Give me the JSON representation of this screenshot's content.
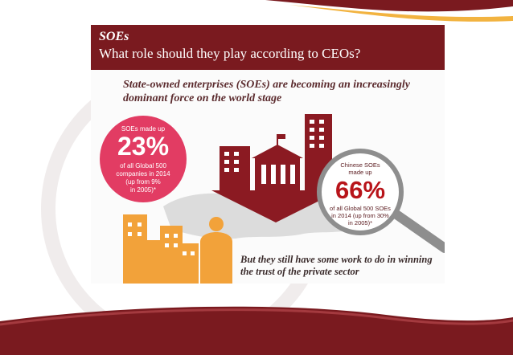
{
  "slide": {
    "title": "SOEs",
    "subtitle": "What role should they play according to CEOs?"
  },
  "infographic": {
    "headline": "State-owned enterprises (SOEs) are becoming an increasingly dominant force on the world stage",
    "left_stat": {
      "intro": "SOEs made up",
      "value": "23%",
      "line1": "of all Global 500",
      "line2": "companies in 2014",
      "line3": "(up from 9%",
      "line4": "in 2005)*"
    },
    "right_stat": {
      "intro1": "Chinese SOEs",
      "intro2": "made up",
      "value": "66%",
      "line1": "of all Global 500 SOEs",
      "line2": "in 2014 (up from 30%",
      "line3": "in 2005)*"
    },
    "footer_text": "But they still have some work to do in winning the trust of the private sector"
  },
  "colors": {
    "maroon": "#7a1a1f",
    "pink": "#e23c63",
    "orange": "#f2a23a",
    "grey": "#8e8e8e"
  }
}
